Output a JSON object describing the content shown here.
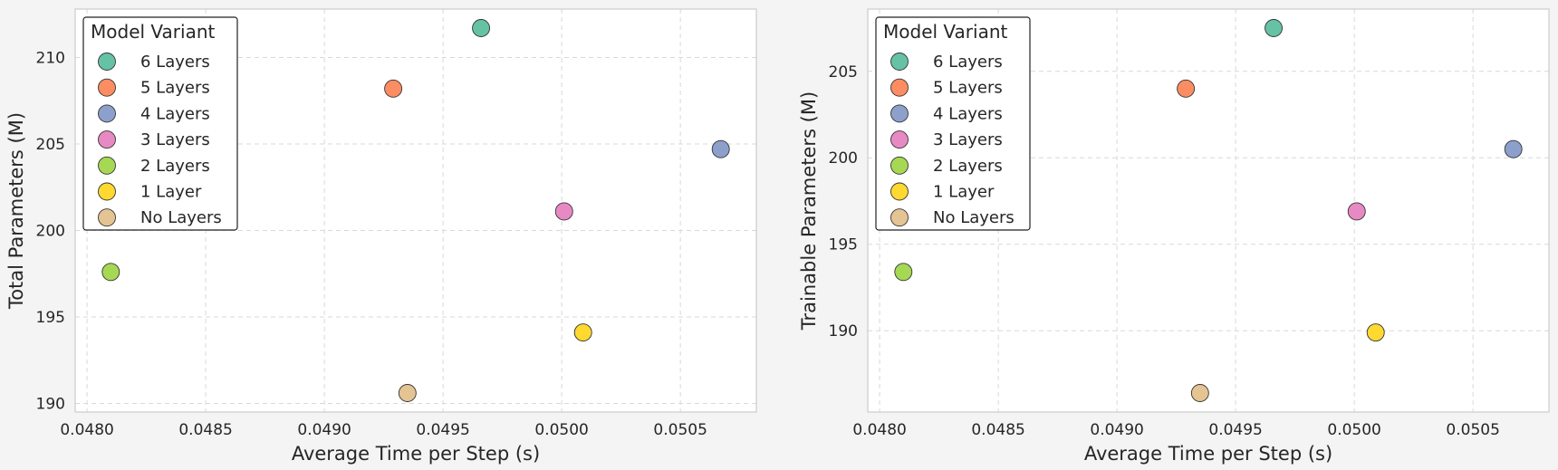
{
  "chart_data": [
    {
      "type": "scatter",
      "xlabel": "Average Time per Step (s)",
      "ylabel": "Total Parameters (M)",
      "xlim": [
        0.04795,
        0.05082
      ],
      "ylim": [
        189.5,
        212.8
      ],
      "xticks": [
        0.048,
        0.0485,
        0.049,
        0.0495,
        0.05,
        0.0505
      ],
      "xtick_labels": [
        "0.0480",
        "0.0485",
        "0.0490",
        "0.0495",
        "0.0500",
        "0.0505"
      ],
      "yticks": [
        190,
        195,
        200,
        205,
        210
      ],
      "ytick_labels": [
        "190",
        "195",
        "200",
        "205",
        "210"
      ],
      "grid": true,
      "legend": {
        "title": "Model Variant",
        "placement": "top-left"
      },
      "series": [
        {
          "name": "6 Layers",
          "color": "#66c2a5",
          "x": [
            0.04966
          ],
          "y": [
            211.7
          ]
        },
        {
          "name": "5 Layers",
          "color": "#fc8d62",
          "x": [
            0.04929
          ],
          "y": [
            208.2
          ]
        },
        {
          "name": "4 Layers",
          "color": "#8da0cb",
          "x": [
            0.05067
          ],
          "y": [
            204.7
          ]
        },
        {
          "name": "3 Layers",
          "color": "#e78ac3",
          "x": [
            0.05001
          ],
          "y": [
            201.1
          ]
        },
        {
          "name": "2 Layers",
          "color": "#a6d854",
          "x": [
            0.0481
          ],
          "y": [
            197.6
          ]
        },
        {
          "name": "1 Layer",
          "color": "#ffd92f",
          "x": [
            0.05009
          ],
          "y": [
            194.1
          ]
        },
        {
          "name": "No Layers",
          "color": "#e5c494",
          "x": [
            0.04935
          ],
          "y": [
            190.6
          ]
        }
      ]
    },
    {
      "type": "scatter",
      "xlabel": "Average Time per Step (s)",
      "ylabel": "Trainable Parameters (M)",
      "xlim": [
        0.04795,
        0.05082
      ],
      "ylim": [
        185.3,
        208.6
      ],
      "xticks": [
        0.048,
        0.0485,
        0.049,
        0.0495,
        0.05,
        0.0505
      ],
      "xtick_labels": [
        "0.0480",
        "0.0485",
        "0.0490",
        "0.0495",
        "0.0500",
        "0.0505"
      ],
      "yticks": [
        190,
        195,
        200,
        205
      ],
      "ytick_labels": [
        "190",
        "195",
        "200",
        "205"
      ],
      "grid": true,
      "legend": {
        "title": "Model Variant",
        "placement": "top-left"
      },
      "series": [
        {
          "name": "6 Layers",
          "color": "#66c2a5",
          "x": [
            0.04966
          ],
          "y": [
            207.5
          ]
        },
        {
          "name": "5 Layers",
          "color": "#fc8d62",
          "x": [
            0.04929
          ],
          "y": [
            204.0
          ]
        },
        {
          "name": "4 Layers",
          "color": "#8da0cb",
          "x": [
            0.05067
          ],
          "y": [
            200.5
          ]
        },
        {
          "name": "3 Layers",
          "color": "#e78ac3",
          "x": [
            0.05001
          ],
          "y": [
            196.9
          ]
        },
        {
          "name": "2 Layers",
          "color": "#a6d854",
          "x": [
            0.0481
          ],
          "y": [
            193.4
          ]
        },
        {
          "name": "1 Layer",
          "color": "#ffd92f",
          "x": [
            0.05009
          ],
          "y": [
            189.9
          ]
        },
        {
          "name": "No Layers",
          "color": "#e5c494",
          "x": [
            0.04935
          ],
          "y": [
            186.4
          ]
        }
      ]
    }
  ]
}
